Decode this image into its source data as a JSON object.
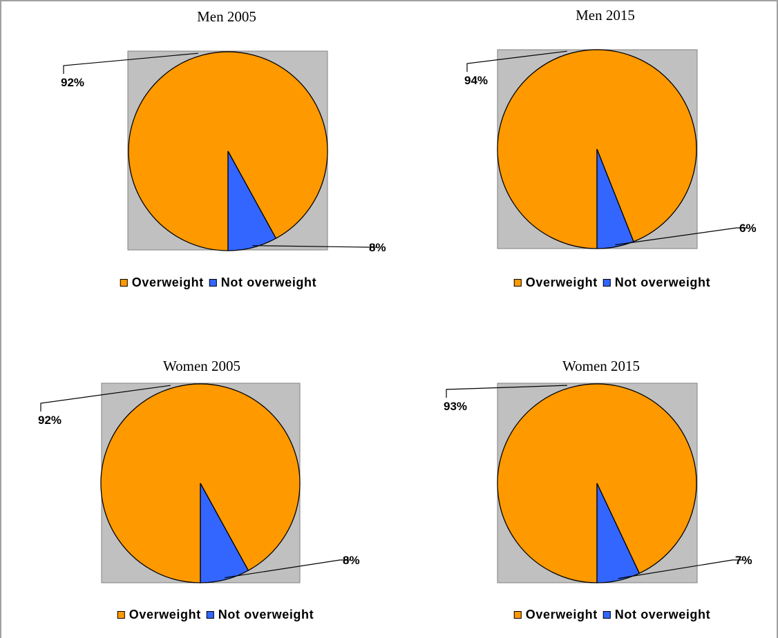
{
  "colors": {
    "overweight": "#FF9900",
    "not_overweight": "#3366FF",
    "plot_bg": "#C0C0C0"
  },
  "chart_data": [
    {
      "type": "pie",
      "title": "Men 2005",
      "categories": [
        "Overweight",
        "Not overweight"
      ],
      "values": [
        92,
        8
      ],
      "labels": [
        "92%",
        "8%"
      ],
      "legend": {
        "position": "bottom",
        "items": [
          "Overweight",
          "Not overweight"
        ]
      }
    },
    {
      "type": "pie",
      "title": "Men 2015",
      "categories": [
        "Overweight",
        "Not overweight"
      ],
      "values": [
        94,
        6
      ],
      "labels": [
        "94%",
        "6%"
      ],
      "legend": {
        "position": "bottom",
        "items": [
          "Overweight",
          "Not overweight"
        ]
      }
    },
    {
      "type": "pie",
      "title": "Women 2005",
      "categories": [
        "Overweight",
        "Not overweight"
      ],
      "values": [
        92,
        8
      ],
      "labels": [
        "92%",
        "8%"
      ],
      "legend": {
        "position": "bottom",
        "items": [
          "Overweight",
          "Not overweight"
        ]
      }
    },
    {
      "type": "pie",
      "title": "Women 2015",
      "categories": [
        "Overweight",
        "Not overweight"
      ],
      "values": [
        93,
        7
      ],
      "labels": [
        "93%",
        "7%"
      ],
      "legend": {
        "position": "bottom",
        "items": [
          "Overweight",
          "Not overweight"
        ]
      }
    }
  ]
}
